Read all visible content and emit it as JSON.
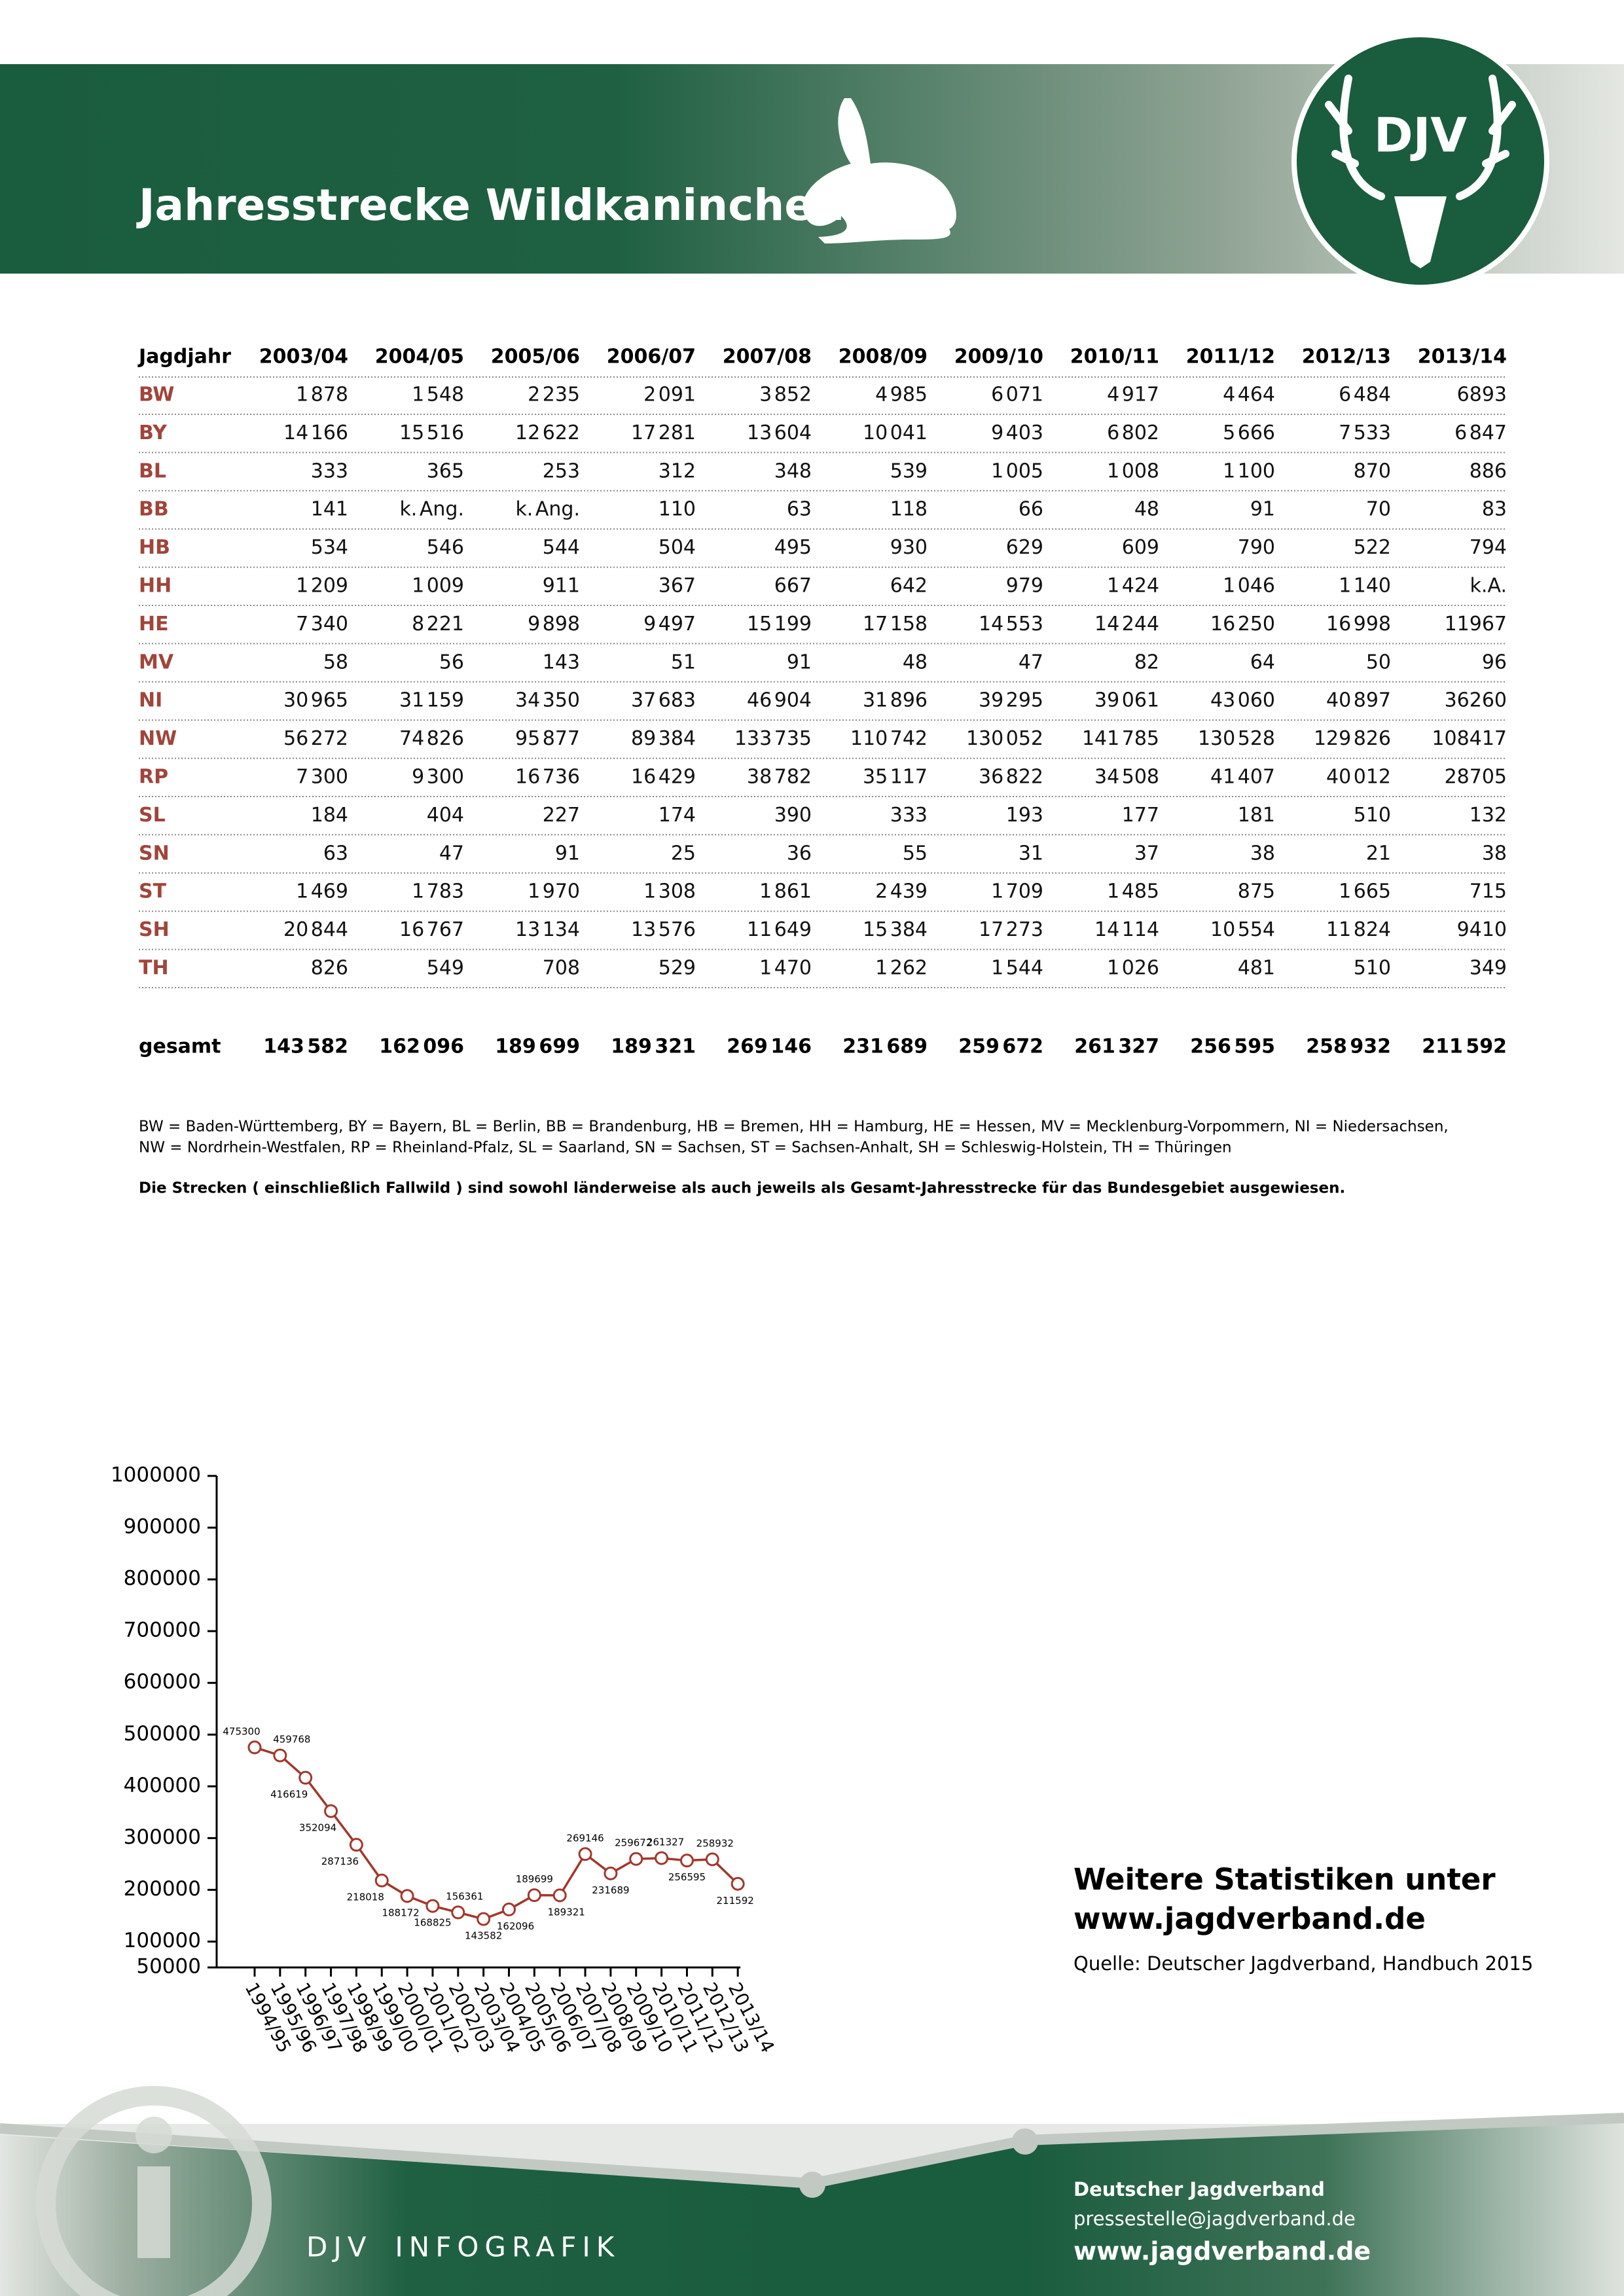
{
  "header": {
    "title": "Jahresstrecke Wildkaninchen",
    "logo": "DJV"
  },
  "table": {
    "columns": [
      "Jagdjahr",
      "2003/04",
      "2004/05",
      "2005/06",
      "2006/07",
      "2007/08",
      "2008/09",
      "2009/10",
      "2010/11",
      "2011/12",
      "2012/13",
      "2013/14"
    ],
    "rows": [
      [
        "BW",
        "1 878",
        "1 548",
        "2 235",
        "2 091",
        "3 852",
        "4 985",
        "6 071",
        "4 917",
        "4 464",
        "6 484",
        "6893"
      ],
      [
        "BY",
        "14 166",
        "15 516",
        "12 622",
        "17 281",
        "13 604",
        "10 041",
        "9 403",
        "6 802",
        "5 666",
        "7 533",
        "6 847"
      ],
      [
        "BL",
        "333",
        "365",
        "253",
        "312",
        "348",
        "539",
        "1 005",
        "1 008",
        "1 100",
        "870",
        "886"
      ],
      [
        "BB",
        "141",
        "k. Ang.",
        "k. Ang.",
        "110",
        "63",
        "118",
        "66",
        "48",
        "91",
        "70",
        "83"
      ],
      [
        "HB",
        "534",
        "546",
        "544",
        "504",
        "495",
        "930",
        "629",
        "609",
        "790",
        "522",
        "794"
      ],
      [
        "HH",
        "1 209",
        "1 009",
        "911",
        "367",
        "667",
        "642",
        "979",
        "1 424",
        "1 046",
        "1 140",
        "k.A."
      ],
      [
        "HE",
        "7 340",
        "8 221",
        "9 898",
        "9 497",
        "15 199",
        "17 158",
        "14 553",
        "14 244",
        "16 250",
        "16 998",
        "11967"
      ],
      [
        "MV",
        "58",
        "56",
        "143",
        "51",
        "91",
        "48",
        "47",
        "82",
        "64",
        "50",
        "96"
      ],
      [
        "NI",
        "30 965",
        "31 159",
        "34 350",
        "37 683",
        "46 904",
        "31 896",
        "39 295",
        "39 061",
        "43 060",
        "40 897",
        "36260"
      ],
      [
        "NW",
        "56 272",
        "74 826",
        "95 877",
        "89 384",
        "133 735",
        "110 742",
        "130 052",
        "141 785",
        "130 528",
        "129 826",
        "108417"
      ],
      [
        "RP",
        "7 300",
        "9 300",
        "16 736",
        "16 429",
        "38 782",
        "35 117",
        "36 822",
        "34 508",
        "41 407",
        "40 012",
        "28705"
      ],
      [
        "SL",
        "184",
        "404",
        "227",
        "174",
        "390",
        "333",
        "193",
        "177",
        "181",
        "510",
        "132"
      ],
      [
        "SN",
        "63",
        "47",
        "91",
        "25",
        "36",
        "55",
        "31",
        "37",
        "38",
        "21",
        "38"
      ],
      [
        "ST",
        "1 469",
        "1 783",
        "1 970",
        "1 308",
        "1 861",
        "2 439",
        "1 709",
        "1 485",
        "875",
        "1 665",
        "715"
      ],
      [
        "SH",
        "20 844",
        "16 767",
        "13 134",
        "13 576",
        "11 649",
        "15 384",
        "17 273",
        "14 114",
        "10 554",
        "11 824",
        "9410"
      ],
      [
        "TH",
        "826",
        "549",
        "708",
        "529",
        "1 470",
        "1 262",
        "1 544",
        "1 026",
        "481",
        "510",
        "349"
      ]
    ],
    "total": [
      "gesamt",
      "143 582",
      "162 096",
      "189 699",
      "189 321",
      "269 146",
      "231 689",
      "259 672",
      "261 327",
      "256 595",
      "258 932",
      "211 592"
    ]
  },
  "notes": [
    "BW = Baden-Württemberg, BY = Bayern, BL = Berlin, BB = Brandenburg, HB = Bremen, HH = Hamburg, HE = Hessen, MV = Mecklenburg-Vorpommern, NI = Niedersachsen,",
    "NW = Nordrhein-Westfalen, RP = Rheinland-Pfalz, SL = Saarland, SN = Sachsen, ST = Sachsen-Anhalt, SH = Schleswig-Holstein, TH = Thüringen",
    "Die Strecken ( einschließlich Fallwild ) sind sowohl länderweise als auch jeweils als Gesamt-Jahresstrecke für das Bundesgebiet ausgewiesen."
  ],
  "chart_data": {
    "type": "line",
    "color": "#a3372b",
    "categories": [
      "1994/95",
      "1995/96",
      "1996/97",
      "1997/98",
      "1998/99",
      "1999/00",
      "2000/01",
      "2001/02",
      "2002/03",
      "2003/04",
      "2004/05",
      "2005/06",
      "2006/07",
      "2007/08",
      "2008/09",
      "2009/10",
      "2010/11",
      "2011/12",
      "2012/13",
      "2013/14"
    ],
    "values": [
      475300,
      459768,
      416619,
      352094,
      287136,
      218018,
      188172,
      168825,
      156361,
      143582,
      162096,
      189699,
      189321,
      269146,
      231689,
      259672,
      261327,
      256595,
      258932,
      211592
    ],
    "ylim": [
      50000,
      1000000
    ],
    "yticks": [
      50000,
      100000,
      200000,
      300000,
      400000,
      500000,
      600000,
      700000,
      800000,
      900000,
      1000000
    ]
  },
  "sidebar": {
    "heading": [
      "Weitere Statistiken unter",
      "www.jagdverband.de"
    ],
    "source": "Quelle: Deutscher Jagdverband, Handbuch 2015"
  },
  "footer": {
    "brand": "DJV INFOGRAFIK",
    "org": "Deutscher Jagdverband",
    "email": "pressestelle@jagdverband.de",
    "web": "www.jagdverband.de"
  }
}
